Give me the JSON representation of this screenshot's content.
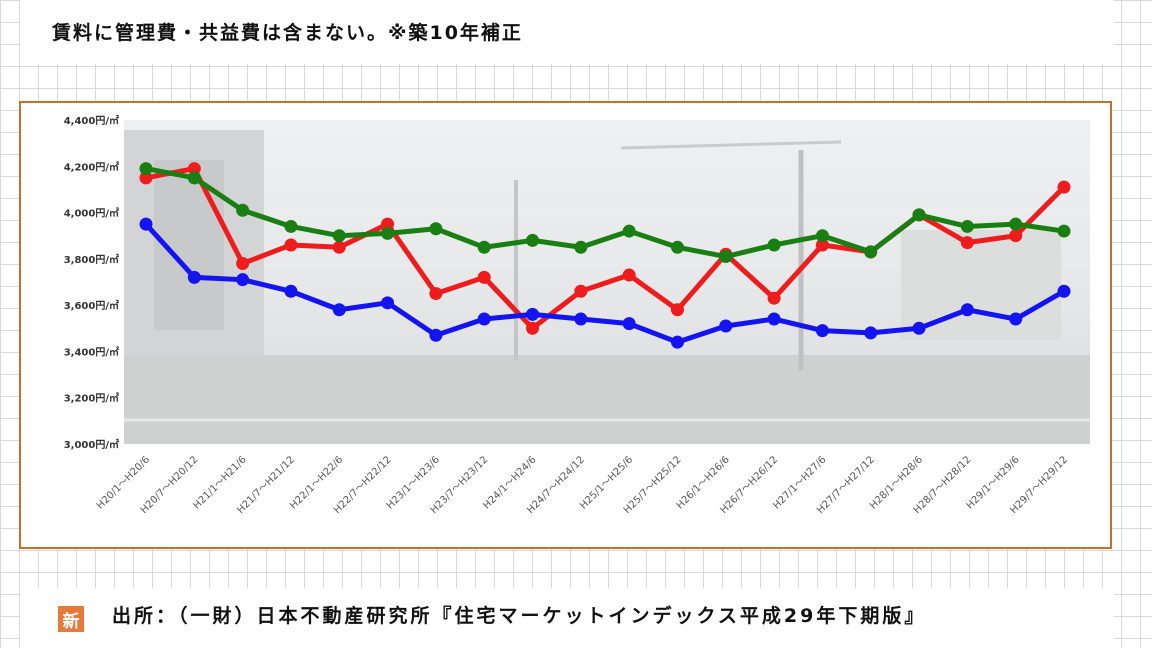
{
  "header": {
    "note": "賃料に管理費・共益費は含まない。※築10年補正"
  },
  "footer": {
    "source": "出所：（一財）日本不動産研究所『住宅マーケットインデックス平成29年下期版』"
  },
  "logo": {
    "text": "新"
  },
  "chart_data": {
    "type": "line",
    "ylim": [
      3000,
      4400
    ],
    "yticks": [
      {
        "value": 4400,
        "label": "4,400円/㎡"
      },
      {
        "value": 4200,
        "label": "4,200円/㎡"
      },
      {
        "value": 4000,
        "label": "4,000円/㎡"
      },
      {
        "value": 3800,
        "label": "3,800円/㎡"
      },
      {
        "value": 3600,
        "label": "3,600円/㎡"
      },
      {
        "value": 3400,
        "label": "3,400円/㎡"
      },
      {
        "value": 3200,
        "label": "3,200円/㎡"
      },
      {
        "value": 3000,
        "label": "3,000円/㎡"
      }
    ],
    "categories": [
      "H20/1～H20/6",
      "H20/7～H20/12",
      "H21/1～H21/6",
      "H21/7～H21/12",
      "H22/1～H22/6",
      "H22/7～H22/12",
      "H23/1～H23/6",
      "H23/7～H23/12",
      "H24/1～H24/6",
      "H24/7～H24/12",
      "H25/1～H25/6",
      "H25/7～H25/12",
      "H26/1～H26/6",
      "H26/7～H26/12",
      "H27/1～H27/6",
      "H27/7～H27/12",
      "H28/1～H28/6",
      "H28/7～H28/12",
      "H29/1～H29/6",
      "H29/7～H29/12"
    ],
    "grid": false,
    "series": [
      {
        "color": "#ee1c1c",
        "values": [
          4150,
          4190,
          3780,
          3860,
          3850,
          3950,
          3650,
          3720,
          3500,
          3660,
          3730,
          3580,
          3820,
          3630,
          3860,
          3830,
          3990,
          3870,
          3900,
          4110
        ]
      },
      {
        "color": "#1a7f12",
        "values": [
          4190,
          4150,
          4010,
          3940,
          3900,
          3910,
          3930,
          3850,
          3880,
          3850,
          3920,
          3850,
          3810,
          3860,
          3900,
          3830,
          3990,
          3940,
          3950,
          3920
        ]
      },
      {
        "color": "#1414f0",
        "values": [
          3950,
          3720,
          3710,
          3660,
          3580,
          3610,
          3470,
          3540,
          3560,
          3540,
          3520,
          3440,
          3510,
          3540,
          3490,
          3480,
          3500,
          3580,
          3540,
          3660
        ]
      }
    ]
  }
}
